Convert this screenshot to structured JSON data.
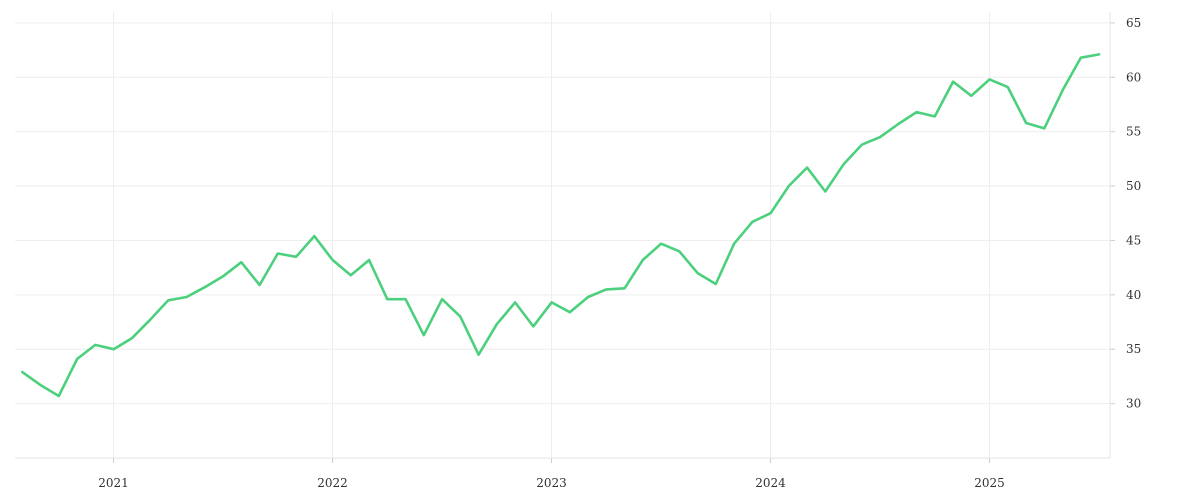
{
  "chart_data": {
    "type": "line",
    "title": "",
    "xlabel": "",
    "ylabel": "",
    "x_tick_labels": [
      "2021",
      "2022",
      "2023",
      "2024",
      "2025"
    ],
    "y_tick_labels": [
      "30",
      "35",
      "40",
      "45",
      "50",
      "55",
      "60",
      "65"
    ],
    "y_ticks": [
      30,
      35,
      40,
      45,
      50,
      55,
      60,
      65
    ],
    "ylim": [
      25,
      66
    ],
    "xlim": [
      "2020-08",
      "2025-07"
    ],
    "y_axis_side": "right",
    "grid": true,
    "line_color": "#4cd07d",
    "grid_color": "#eeeeee",
    "series": [
      {
        "x": [
          "2020-08",
          "2020-09",
          "2020-10",
          "2020-11",
          "2020-12",
          "2021-01",
          "2021-02",
          "2021-03",
          "2021-04",
          "2021-05",
          "2021-06",
          "2021-07",
          "2021-08",
          "2021-09",
          "2021-10",
          "2021-11",
          "2021-12",
          "2022-01",
          "2022-02",
          "2022-03",
          "2022-04",
          "2022-05",
          "2022-06",
          "2022-07",
          "2022-08",
          "2022-09",
          "2022-10",
          "2022-11",
          "2022-12",
          "2023-01",
          "2023-02",
          "2023-03",
          "2023-04",
          "2023-05",
          "2023-06",
          "2023-07",
          "2023-08",
          "2023-09",
          "2023-10",
          "2023-11",
          "2023-12",
          "2024-01",
          "2024-02",
          "2024-03",
          "2024-04",
          "2024-05",
          "2024-06",
          "2024-07",
          "2024-08",
          "2024-09",
          "2024-10",
          "2024-11",
          "2024-12",
          "2025-01",
          "2025-02",
          "2025-03",
          "2025-04",
          "2025-05",
          "2025-06",
          "2025-07"
        ],
        "values": [
          32.9,
          31.7,
          30.7,
          34.1,
          35.4,
          35.0,
          36.0,
          37.7,
          39.5,
          39.8,
          40.7,
          41.7,
          43.0,
          40.9,
          43.8,
          43.5,
          45.4,
          43.2,
          41.8,
          43.2,
          39.6,
          39.6,
          36.3,
          39.6,
          38.0,
          34.5,
          37.3,
          39.3,
          37.1,
          39.3,
          38.4,
          39.8,
          40.5,
          40.6,
          43.2,
          44.7,
          44.0,
          42.0,
          41.0,
          44.7,
          46.7,
          47.5,
          50.0,
          51.7,
          49.5,
          52.0,
          53.8,
          54.5,
          55.7,
          56.8,
          56.4,
          59.6,
          58.3,
          59.8,
          59.1,
          55.8,
          55.3,
          58.8,
          61.8,
          62.1
        ]
      }
    ]
  }
}
